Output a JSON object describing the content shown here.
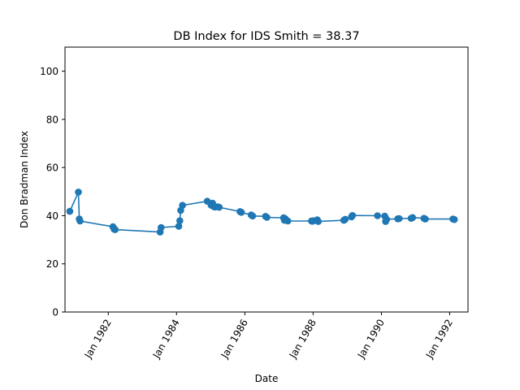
{
  "chart_data": {
    "type": "line",
    "title": "DB Index for IDS Smith = 38.37",
    "xlabel": "Date",
    "ylabel": "Don Bradman Index",
    "xlim": [
      "1980-09-25",
      "1992-07-15"
    ],
    "ylim": [
      0,
      110
    ],
    "y_ticks": [
      0,
      20,
      40,
      60,
      80,
      100
    ],
    "x_ticks": [
      {
        "date": "1982-01-01",
        "label": "Jan 1982"
      },
      {
        "date": "1984-01-01",
        "label": "Jan 1984"
      },
      {
        "date": "1986-01-01",
        "label": "Jan 1986"
      },
      {
        "date": "1988-01-01",
        "label": "Jan 1988"
      },
      {
        "date": "1990-01-01",
        "label": "Jan 1990"
      },
      {
        "date": "1992-01-01",
        "label": "Jan 1992"
      }
    ],
    "grid": false,
    "legend": false,
    "series": [
      {
        "color": "#1f77b4",
        "x": [
          "1980-11-15",
          "1981-02-15",
          "1981-02-25",
          "1981-03-05",
          "1982-02-20",
          "1982-03-05",
          "1982-03-15",
          "1983-07-10",
          "1983-07-20",
          "1984-01-25",
          "1984-02-05",
          "1984-02-15",
          "1984-03-05",
          "1984-11-25",
          "1985-01-05",
          "1985-01-20",
          "1985-02-01",
          "1985-02-15",
          "1985-03-15",
          "1985-04-01",
          "1985-11-10",
          "1985-11-25",
          "1986-03-10",
          "1986-03-25",
          "1986-08-10",
          "1986-08-25",
          "1987-02-20",
          "1987-03-01",
          "1987-03-10",
          "1987-04-05",
          "1987-12-15",
          "1987-12-25",
          "1988-01-05",
          "1988-02-15",
          "1988-02-25",
          "1988-11-25",
          "1988-12-10",
          "1989-02-15",
          "1989-02-25",
          "1989-11-20",
          "1990-02-05",
          "1990-02-15",
          "1990-02-25",
          "1990-06-25",
          "1990-07-10",
          "1990-11-15",
          "1990-11-30",
          "1991-04-01",
          "1991-04-15",
          "1992-02-05",
          "1992-02-20"
        ],
        "values": [
          41.8,
          49.8,
          38.6,
          37.8,
          35.4,
          34.4,
          34.2,
          33.2,
          35.1,
          35.6,
          37.9,
          42.2,
          44.3,
          46.0,
          44.4,
          45.2,
          43.8,
          43.6,
          43.7,
          43.5,
          41.7,
          41.4,
          40.3,
          39.9,
          39.7,
          39.3,
          39.1,
          38.1,
          38.7,
          37.8,
          37.8,
          37.7,
          37.9,
          38.3,
          37.6,
          38.1,
          38.5,
          39.5,
          40.1,
          40.0,
          39.8,
          37.6,
          38.5,
          38.7,
          38.8,
          38.9,
          39.2,
          38.9,
          38.6,
          38.6,
          38.4
        ]
      }
    ]
  }
}
